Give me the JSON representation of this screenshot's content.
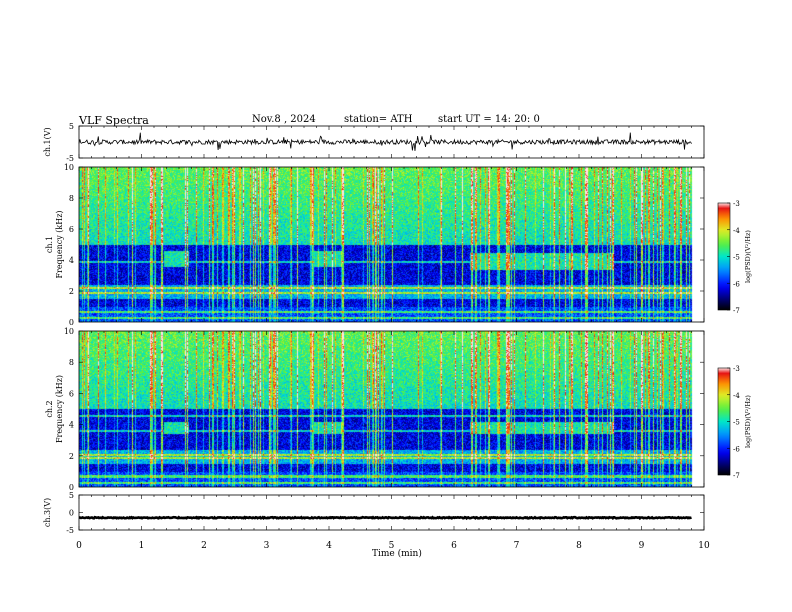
{
  "header": {
    "title": "VLF  Spectra",
    "date": "Nov.8  , 2024",
    "station": "station= ATH",
    "start_ut": "start  UT  =   14: 20: 0"
  },
  "chart_data": {
    "type": "heatmap",
    "xlabel": "Time  (min)",
    "xlim": [
      0,
      10
    ],
    "x_ticks": [
      "0",
      "1",
      "2",
      "3",
      "4",
      "5",
      "6",
      "7",
      "8",
      "9",
      "10"
    ],
    "panels": [
      {
        "name": "ch1-voltage",
        "type": "line",
        "ylabel": "ch.1(V)",
        "ylim": [
          -5,
          5
        ],
        "y_ticks": [
          "5",
          "-5"
        ],
        "data_end_min": 9.8,
        "mean": 0,
        "noise": 0.7,
        "spike_amp": 2.5
      },
      {
        "name": "ch1-spectrogram",
        "type": "heatmap",
        "ylabel_top": "ch.1",
        "ylabel": "Frequency  (kHz)",
        "ylim": [
          0,
          10
        ],
        "y_ticks": [
          "0",
          "2",
          "4",
          "6",
          "8",
          "10"
        ],
        "colorbar": {
          "label": "log(PSD)(V²/Hz)",
          "range": [
            -7,
            -3
          ],
          "ticks": [
            "-3",
            "-4",
            "-5",
            "-6",
            "-7"
          ]
        },
        "bursts": [
          {
            "t0": 1.35,
            "t1": 1.75,
            "f0": 3.6,
            "f1": 4.6
          },
          {
            "t0": 3.75,
            "t1": 4.2,
            "f0": 3.6,
            "f1": 4.6
          },
          {
            "t0": 6.25,
            "t1": 8.55,
            "f0": 3.4,
            "f1": 4.5
          }
        ],
        "bands_khz": [
          0.3,
          0.7,
          1.9,
          2.2,
          3.9
        ]
      },
      {
        "name": "ch2-spectrogram",
        "type": "heatmap",
        "ylabel_top": "ch.2",
        "ylabel": "Frequency  (kHz)",
        "ylim": [
          0,
          10
        ],
        "y_ticks": [
          "0",
          "2",
          "4",
          "6",
          "8",
          "10"
        ],
        "colorbar": {
          "label": "log(PSD)(V²/Hz)",
          "range": [
            -7,
            -3
          ],
          "ticks": [
            "-3",
            "-4",
            "-5",
            "-6",
            "-7"
          ]
        },
        "bursts": [
          {
            "t0": 1.35,
            "t1": 1.75,
            "f0": 3.4,
            "f1": 4.2
          },
          {
            "t0": 3.75,
            "t1": 4.2,
            "f0": 3.4,
            "f1": 4.2
          },
          {
            "t0": 6.25,
            "t1": 8.55,
            "f0": 3.4,
            "f1": 4.2
          }
        ],
        "bands_khz": [
          0.3,
          0.7,
          1.9,
          2.1,
          3.6,
          4.6
        ]
      },
      {
        "name": "ch3-voltage",
        "type": "line",
        "ylabel": "ch.3(V)",
        "ylim": [
          -5,
          5
        ],
        "y_ticks": [
          "5",
          "0",
          "-5"
        ],
        "data_end_min": 9.8,
        "mean": -1.5,
        "noise": 0.15
      }
    ]
  }
}
